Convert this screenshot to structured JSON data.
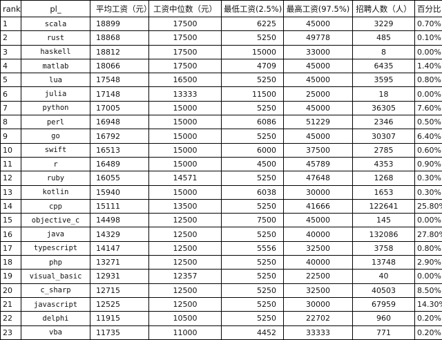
{
  "table": {
    "header": [
      "rank",
      "pl_",
      "平均工资（元）",
      "工资中位数（元）",
      "最低工资(2.5%)",
      "最高工资(97.5%)",
      "招聘人数（人）",
      "百分比"
    ],
    "rows": [
      [
        "1",
        "scala",
        "18899",
        "17500",
        "6225",
        "45000",
        "3229",
        "0.70%"
      ],
      [
        "2",
        "rust",
        "18868",
        "17500",
        "5250",
        "49778",
        "485",
        "0.10%"
      ],
      [
        "3",
        "haskell",
        "18812",
        "17500",
        "15000",
        "33000",
        "8",
        "0.00%"
      ],
      [
        "4",
        "matlab",
        "18066",
        "17500",
        "4709",
        "45000",
        "6435",
        "1.40%"
      ],
      [
        "5",
        "lua",
        "17548",
        "16500",
        "5250",
        "45000",
        "3595",
        "0.80%"
      ],
      [
        "6",
        "julia",
        "17148",
        "13333",
        "11500",
        "25000",
        "18",
        "0.00%"
      ],
      [
        "7",
        "python",
        "17005",
        "15000",
        "5250",
        "45000",
        "36305",
        "7.60%"
      ],
      [
        "8",
        "perl",
        "16948",
        "15000",
        "6086",
        "51229",
        "2346",
        "0.50%"
      ],
      [
        "9",
        "go",
        "16792",
        "15000",
        "5250",
        "45000",
        "30307",
        "6.40%"
      ],
      [
        "10",
        "swift",
        "16513",
        "15000",
        "6000",
        "37500",
        "2785",
        "0.60%"
      ],
      [
        "11",
        "r",
        "16489",
        "15000",
        "4500",
        "45789",
        "4353",
        "0.90%"
      ],
      [
        "12",
        "ruby",
        "16055",
        "14571",
        "5250",
        "47648",
        "1268",
        "0.30%"
      ],
      [
        "13",
        "kotlin",
        "15940",
        "15000",
        "6038",
        "30000",
        "1653",
        "0.30%"
      ],
      [
        "14",
        "cpp",
        "15111",
        "13500",
        "5250",
        "41666",
        "122641",
        "25.80%"
      ],
      [
        "15",
        "objective_c",
        "14498",
        "12500",
        "7500",
        "45000",
        "145",
        "0.00%"
      ],
      [
        "16",
        "java",
        "14329",
        "12500",
        "5250",
        "40000",
        "132086",
        "27.80%"
      ],
      [
        "17",
        "typescript",
        "14147",
        "12500",
        "5556",
        "32500",
        "3758",
        "0.80%"
      ],
      [
        "18",
        "php",
        "13271",
        "12500",
        "5250",
        "40000",
        "13748",
        "2.90%"
      ],
      [
        "19",
        "visual_basic",
        "12931",
        "12357",
        "5250",
        "22500",
        "40",
        "0.00%"
      ],
      [
        "20",
        "c_sharp",
        "12715",
        "12500",
        "5250",
        "32500",
        "40503",
        "8.50%"
      ],
      [
        "21",
        "javascript",
        "12525",
        "12500",
        "5250",
        "30000",
        "67959",
        "14.30%"
      ],
      [
        "22",
        "delphi",
        "11915",
        "10500",
        "5250",
        "22702",
        "960",
        "0.20%"
      ],
      [
        "23",
        "vba",
        "11735",
        "11000",
        "4452",
        "33333",
        "771",
        "0.20%"
      ]
    ]
  }
}
